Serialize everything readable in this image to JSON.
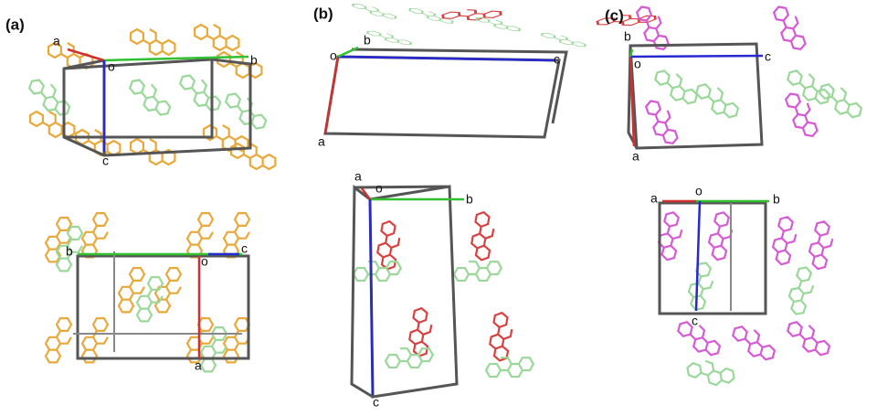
{
  "panels": [
    {
      "label": "(a)",
      "views": [
        {
          "a": "a",
          "o": "o",
          "b": "b",
          "c": "c"
        },
        {
          "a": "a",
          "o": "o",
          "b": "b",
          "c": "c"
        }
      ]
    },
    {
      "label": "(b)",
      "views": [
        {
          "a": "a",
          "o": "o",
          "b": "b",
          "c": "c"
        },
        {
          "a": "a",
          "o": "o",
          "b": "b",
          "c": "c"
        }
      ]
    },
    {
      "label": "(c)",
      "views": [
        {
          "a": "a",
          "o": "o",
          "b": "b",
          "c": "c"
        },
        {
          "a": "a",
          "o": "o",
          "b": "b",
          "c": "c"
        }
      ]
    }
  ]
}
